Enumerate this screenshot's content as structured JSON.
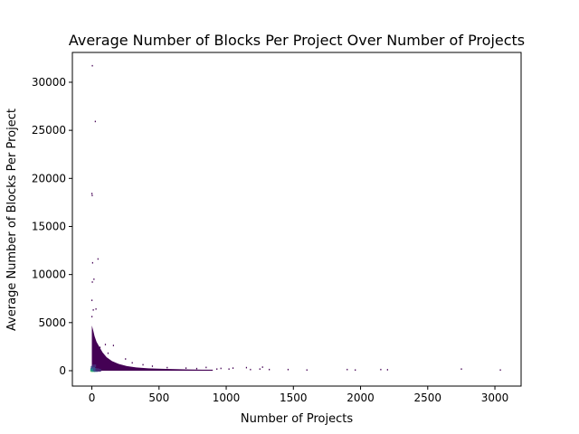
{
  "chart_data": {
    "type": "heatmap",
    "title": "Average Number of Blocks Per Project Over Number of Projects",
    "xlabel": "Number of Projects",
    "ylabel": "Average Number of Blocks Per Project",
    "xlim": [
      -145,
      3195
    ],
    "ylim": [
      -1600,
      33100
    ],
    "x_ticks": [
      0,
      500,
      1000,
      1500,
      2000,
      2500,
      3000
    ],
    "y_ticks": [
      0,
      5000,
      10000,
      15000,
      20000,
      25000,
      30000
    ],
    "colormap": [
      "#440154",
      "#482878",
      "#3b528b",
      "#21918c",
      "#5ec962",
      "#fde725"
    ],
    "grid": false,
    "dense_region_boundary": [
      [
        0,
        4700
      ],
      [
        10,
        4200
      ],
      [
        20,
        3600
      ],
      [
        35,
        3000
      ],
      [
        55,
        2500
      ],
      [
        80,
        1900
      ],
      [
        110,
        1400
      ],
      [
        150,
        1000
      ],
      [
        200,
        700
      ],
      [
        260,
        480
      ],
      [
        330,
        340
      ],
      [
        420,
        250
      ],
      [
        520,
        200
      ],
      [
        620,
        160
      ],
      [
        720,
        130
      ],
      [
        820,
        110
      ],
      [
        900,
        100
      ]
    ],
    "high_density_cells": [
      {
        "x": 2,
        "y": 30,
        "level": 4
      },
      {
        "x": 5,
        "y": 60,
        "level": 4
      },
      {
        "x": 8,
        "y": 15,
        "level": 4
      },
      {
        "x": 3,
        "y": 120,
        "level": 3
      },
      {
        "x": 10,
        "y": 200,
        "level": 3
      },
      {
        "x": 12,
        "y": 90,
        "level": 3
      },
      {
        "x": 15,
        "y": 40,
        "level": 3
      },
      {
        "x": 20,
        "y": 150,
        "level": 2
      },
      {
        "x": 25,
        "y": 70,
        "level": 2
      },
      {
        "x": 30,
        "y": 20,
        "level": 2
      },
      {
        "x": 6,
        "y": 350,
        "level": 2
      },
      {
        "x": 40,
        "y": 110,
        "level": 1
      },
      {
        "x": 55,
        "y": 50,
        "level": 1
      },
      {
        "x": 18,
        "y": 500,
        "level": 1
      }
    ],
    "outliers": [
      {
        "x": 3,
        "y": 31700
      },
      {
        "x": 25,
        "y": 25900
      },
      {
        "x": 0,
        "y": 18400
      },
      {
        "x": 2,
        "y": 18200
      },
      {
        "x": 45,
        "y": 11600
      },
      {
        "x": 5,
        "y": 11200
      },
      {
        "x": 15,
        "y": 9500
      },
      {
        "x": 3,
        "y": 9200
      },
      {
        "x": 0,
        "y": 7300
      },
      {
        "x": 30,
        "y": 6400
      },
      {
        "x": 10,
        "y": 6300
      },
      {
        "x": 0,
        "y": 5600
      },
      {
        "x": 100,
        "y": 2700
      },
      {
        "x": 160,
        "y": 2600
      },
      {
        "x": 60,
        "y": 2400
      },
      {
        "x": 120,
        "y": 1800
      },
      {
        "x": 250,
        "y": 1200
      },
      {
        "x": 300,
        "y": 800
      },
      {
        "x": 380,
        "y": 600
      },
      {
        "x": 450,
        "y": 450
      },
      {
        "x": 560,
        "y": 300
      },
      {
        "x": 700,
        "y": 250
      },
      {
        "x": 780,
        "y": 200
      },
      {
        "x": 850,
        "y": 320
      },
      {
        "x": 930,
        "y": 150
      },
      {
        "x": 960,
        "y": 220
      },
      {
        "x": 1020,
        "y": 150
      },
      {
        "x": 1050,
        "y": 250
      },
      {
        "x": 1150,
        "y": 300
      },
      {
        "x": 1180,
        "y": 100
      },
      {
        "x": 1250,
        "y": 150
      },
      {
        "x": 1270,
        "y": 350
      },
      {
        "x": 1320,
        "y": 100
      },
      {
        "x": 1460,
        "y": 100
      },
      {
        "x": 1600,
        "y": 50
      },
      {
        "x": 1900,
        "y": 100
      },
      {
        "x": 1960,
        "y": 50
      },
      {
        "x": 2150,
        "y": 100
      },
      {
        "x": 2200,
        "y": 80
      },
      {
        "x": 2750,
        "y": 150
      },
      {
        "x": 3040,
        "y": 50
      }
    ]
  }
}
